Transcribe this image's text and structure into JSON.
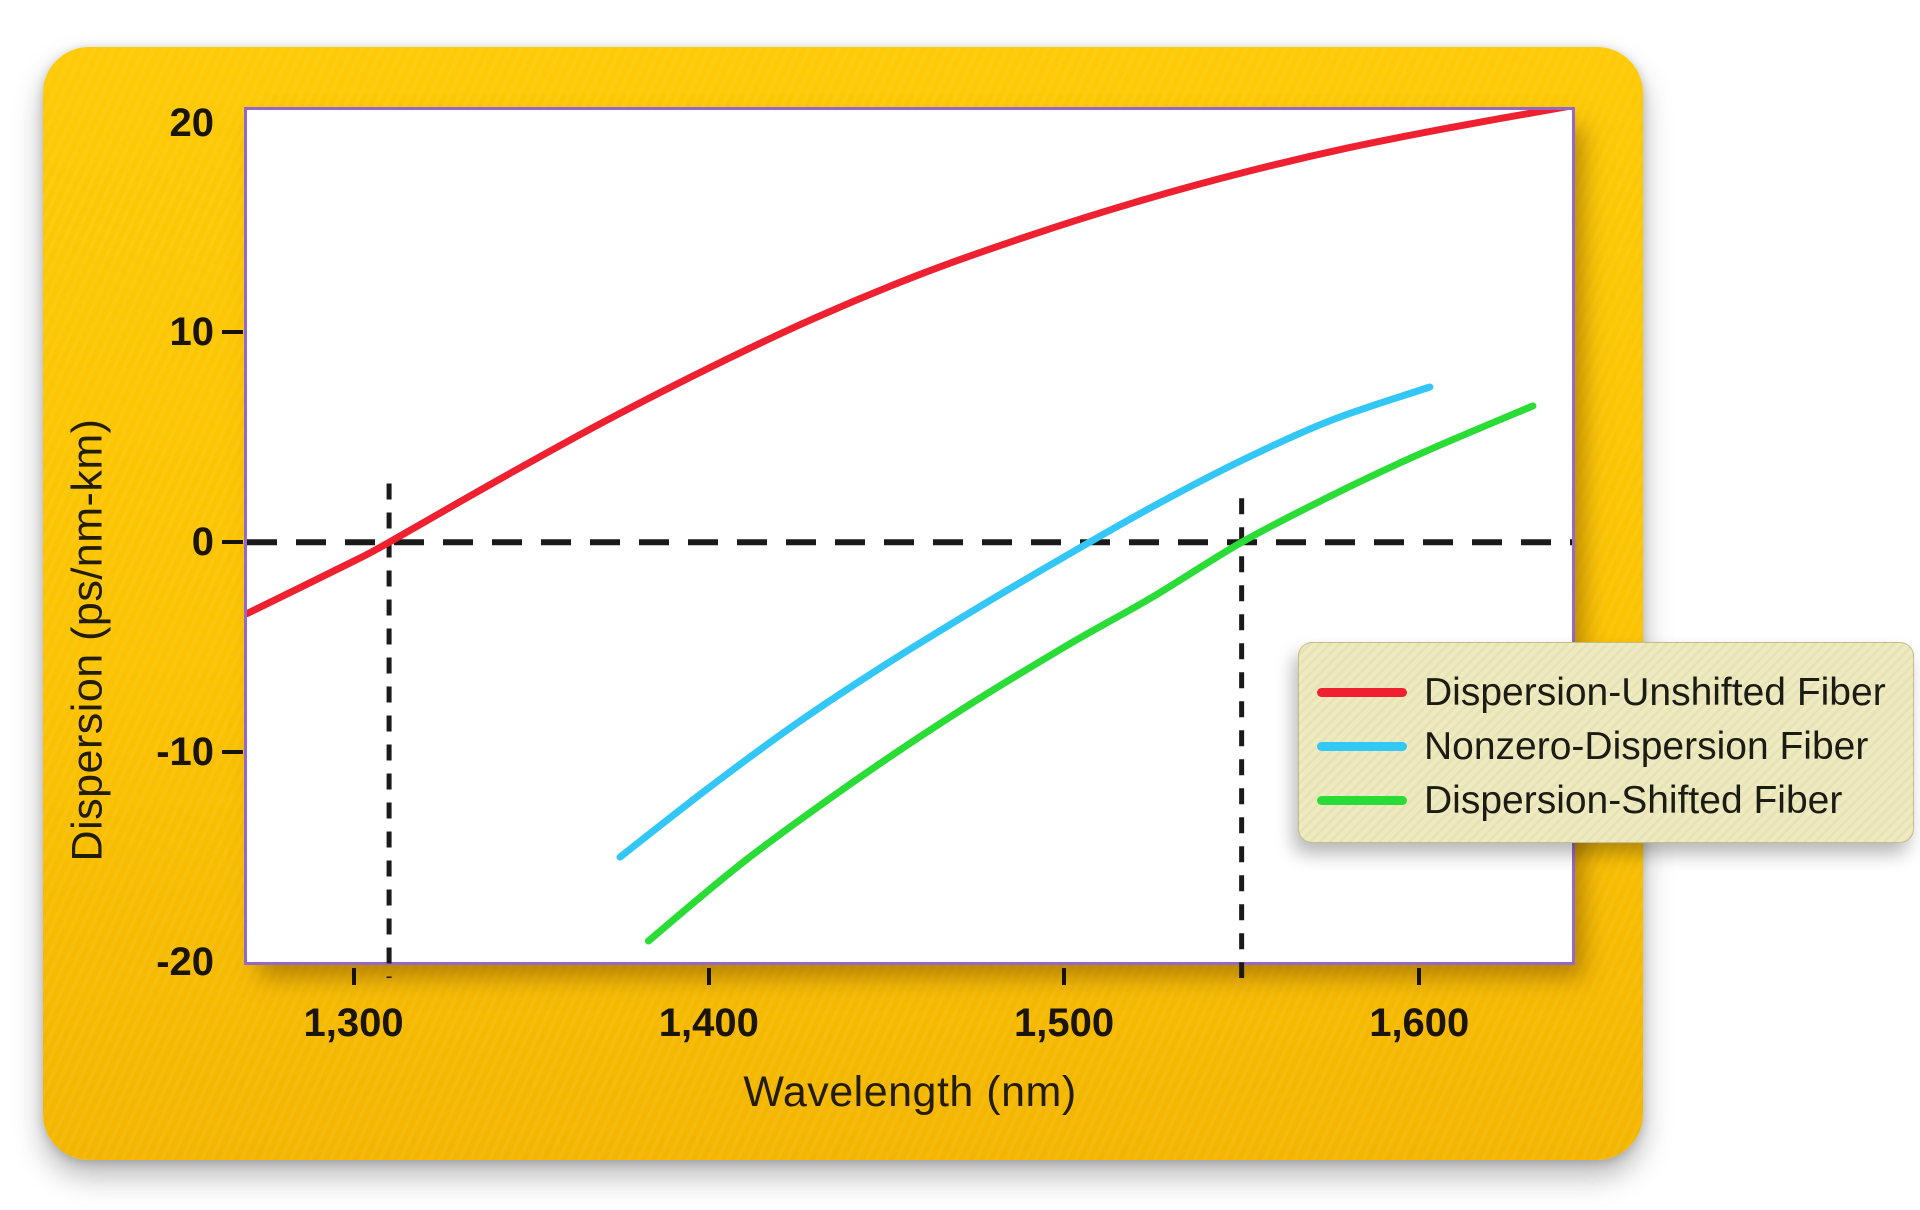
{
  "figure": {
    "colors": {
      "card_gold": "#FBC301",
      "plot_border_purple": "#9468C8",
      "plot_background": "#FFFFFF",
      "guide_dash": "#1a1a1a",
      "tick_text": "#1a1508",
      "legend_background": "#EFEBC1",
      "legend_text": "#1C1C14",
      "series_red": "#EF2030",
      "series_cyan": "#33C7F8",
      "series_green": "#2ADC36"
    }
  },
  "axes": {
    "x": {
      "label": "Wavelength (nm)",
      "min": 1270,
      "max": 1643,
      "ticks": [
        1300,
        1400,
        1500,
        1600
      ],
      "tick_labels": [
        "1,300",
        "1,400",
        "1,500",
        "1,600"
      ]
    },
    "y": {
      "label": "Dispersion (ps/nm-km)",
      "min": -20,
      "max": 20.6,
      "ticks": [
        20,
        10,
        0,
        -10,
        -20
      ],
      "tick_labels": [
        "20",
        "10",
        "0",
        "-10",
        "-20"
      ],
      "tick_marks_with_dash": [
        10,
        0,
        -10
      ]
    }
  },
  "chart_data": {
    "type": "line",
    "title": "",
    "xlabel": "Wavelength (nm)",
    "ylabel": "Dispersion (ps/nm-km)",
    "xlim": [
      1270,
      1643
    ],
    "ylim": [
      -20,
      20.6
    ],
    "grid": false,
    "legend_position": "lower-right",
    "series": [
      {
        "name": "Dispersion-Unshifted Fiber",
        "color": "#EF2030",
        "zero_dispersion_nm": 1310,
        "x": [
          1270,
          1300,
          1310,
          1340,
          1370,
          1400,
          1430,
          1460,
          1490,
          1520,
          1550,
          1580,
          1610,
          1643
        ],
        "y": [
          -3.4,
          -0.9,
          0,
          2.9,
          5.7,
          8.3,
          10.7,
          12.8,
          14.6,
          16.2,
          17.6,
          18.8,
          19.8,
          20.8
        ]
      },
      {
        "name": "Nonzero-Dispersion Fiber",
        "color": "#33C7F8",
        "zero_dispersion_nm": 1507,
        "x": [
          1375,
          1400,
          1425,
          1450,
          1475,
          1500,
          1525,
          1550,
          1575,
          1603
        ],
        "y": [
          -15,
          -11.7,
          -8.6,
          -5.8,
          -3.2,
          -0.7,
          1.7,
          3.9,
          5.8,
          7.4
        ]
      },
      {
        "name": "Dispersion-Shifted Fiber",
        "color": "#2ADC36",
        "zero_dispersion_nm": 1550,
        "x": [
          1383,
          1410,
          1440,
          1470,
          1500,
          1525,
          1550,
          1575,
          1600,
          1632
        ],
        "y": [
          -19,
          -15.2,
          -11.5,
          -8.1,
          -5.0,
          -2.6,
          0,
          2.2,
          4.2,
          6.5
        ]
      }
    ],
    "guides": {
      "zero_dispersion_hline": 0,
      "wavelength_markers": [
        {
          "wavelength": 1310,
          "top_value": 2.8
        },
        {
          "wavelength": 1550,
          "top_value": 2.1
        }
      ]
    }
  }
}
